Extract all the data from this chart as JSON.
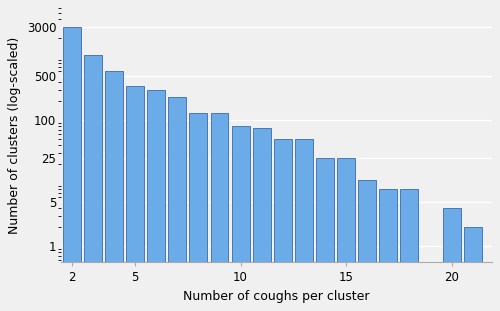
{
  "x_values": [
    2,
    3,
    4,
    5,
    6,
    7,
    8,
    9,
    10,
    11,
    12,
    13,
    14,
    15,
    16,
    17,
    18,
    20,
    21
  ],
  "y_values": [
    3000,
    1100,
    600,
    350,
    300,
    230,
    130,
    130,
    80,
    75,
    50,
    50,
    25,
    25,
    11,
    8,
    8,
    4,
    2
  ],
  "bar_color": "#6aabe8",
  "bar_edge_color": "#3a6aaa",
  "xlabel": "Number of coughs per cluster",
  "ylabel": "Number of clusters (log-scaled)",
  "yticks": [
    1,
    5,
    25,
    100,
    500,
    3000
  ],
  "ytick_labels": [
    "1",
    "5",
    "25",
    "100",
    "500",
    "3000"
  ],
  "xticks": [
    2,
    5,
    10,
    15,
    20
  ],
  "ylim_bottom": 0.55,
  "ylim_top": 6000,
  "xlim_left": 1.5,
  "xlim_right": 21.9,
  "background_color": "#f0f0f0",
  "plot_bg_color": "#f0f0f0",
  "grid_color": "#ffffff",
  "label_fontsize": 9,
  "tick_fontsize": 8.5,
  "bar_width": 0.85
}
